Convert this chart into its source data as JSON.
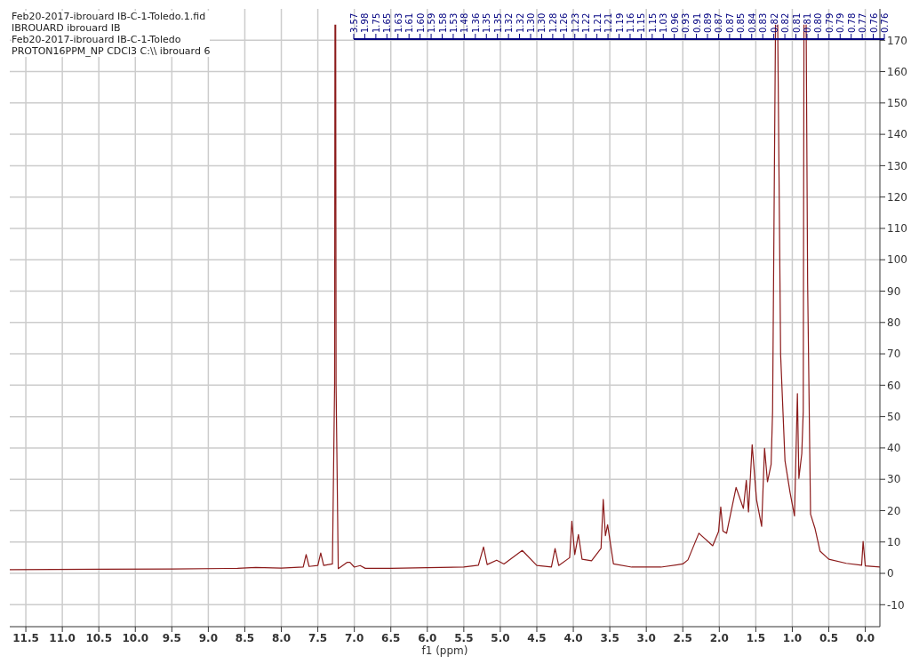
{
  "chart_data": {
    "type": "line",
    "xlabel": "f1 (ppm)",
    "annotations": [
      "Feb20-2017-ibrouard IB-C-1-Toledo.1.fid",
      "IBROUARD ibrouard IB",
      "Feb20-2017-ibrouard IB-C-1-Toledo",
      "PROTON16PPM_NP CDCl3 C:\\\\ ibrouard 6",
      "3.57",
      "1.98",
      "1.75",
      "1.65",
      "1.63",
      "1.61",
      "1.60",
      "1.59",
      "1.58",
      "1.53",
      "1.48",
      "1.36",
      "1.35",
      "1.35",
      "1.32",
      "1.32",
      "1.30",
      "1.30",
      "1.28",
      "1.26",
      "1.23",
      "1.22",
      "1.21",
      "1.21",
      "1.19",
      "1.16",
      "1.15",
      "1.15",
      "1.03",
      "0.96",
      "0.93",
      "0.91",
      "0.89",
      "0.87",
      "0.87",
      "0.85",
      "0.84",
      "0.83",
      "0.82",
      "0.82",
      "0.81",
      "0.81",
      "0.80",
      "0.79",
      "0.79",
      "0.78",
      "0.77",
      "0.76",
      "0.76"
    ],
    "xlim": [
      11.72,
      -0.2
    ],
    "xticks": [
      11.5,
      {
        "value": 11,
        "label": "11.0"
      },
      10.5,
      {
        "value": 10,
        "label": "10.0"
      },
      9.5,
      {
        "value": 9,
        "label": "9.0"
      },
      8.5,
      {
        "value": 8,
        "label": "8.0"
      },
      7.5,
      {
        "value": 7,
        "label": "7.0"
      },
      6.5,
      {
        "value": 6,
        "label": "6.0"
      },
      5.5,
      {
        "value": 5,
        "label": "5.0"
      },
      4.5,
      {
        "value": 4,
        "label": "4.0"
      },
      3.5,
      {
        "value": 3,
        "label": "3.0"
      },
      2.5,
      {
        "value": 2,
        "label": "2.0"
      },
      1.5,
      {
        "value": 1,
        "label": "1.0"
      },
      0.5,
      {
        "value": 0,
        "label": "0.0"
      }
    ],
    "ylim": [
      -17,
      180
    ],
    "yticks": [
      -10,
      0,
      10,
      20,
      30,
      40,
      50,
      60,
      70,
      80,
      90,
      100,
      110,
      120,
      130,
      140,
      150,
      160,
      170
    ],
    "grid": true,
    "marker": "none",
    "line_style": "solid",
    "series": [
      {
        "color": "#8b1a1a",
        "x": [
          11.72,
          10.5,
          9.5,
          8.6,
          8.35,
          8.0,
          7.7,
          7.66,
          7.62,
          7.5,
          7.46,
          7.42,
          7.3,
          7.27,
          7.265,
          7.26,
          7.255,
          7.25,
          7.22,
          7.1,
          7.06,
          7.0,
          6.92,
          6.85,
          6.5,
          6.0,
          5.5,
          5.3,
          5.23,
          5.18,
          5.05,
          4.95,
          4.7,
          4.5,
          4.3,
          4.25,
          4.2,
          4.05,
          4.02,
          3.98,
          3.93,
          3.88,
          3.75,
          3.62,
          3.59,
          3.56,
          3.53,
          3.45,
          3.2,
          2.8,
          2.5,
          2.43,
          2.28,
          2.09,
          2.01,
          1.98,
          1.95,
          1.9,
          1.77,
          1.67,
          1.63,
          1.6,
          1.55,
          1.49,
          1.42,
          1.38,
          1.34,
          1.29,
          1.27,
          1.23,
          1.215,
          1.2,
          1.16,
          1.1,
          1.03,
          0.97,
          0.93,
          0.91,
          0.87,
          0.85,
          0.84,
          0.825,
          0.81,
          0.79,
          0.75,
          0.69,
          0.62,
          0.5,
          0.26,
          0.05,
          0.03,
          0.0,
          -0.2
        ],
        "values": [
          1.2,
          1.3,
          1.4,
          1.6,
          1.9,
          1.7,
          2.0,
          6.0,
          2.2,
          2.5,
          6.5,
          2.5,
          3.0,
          60,
          175,
          null,
          175,
          60,
          1.5,
          3.5,
          3.5,
          2.0,
          2.5,
          1.6,
          1.6,
          1.8,
          2.0,
          2.6,
          8.4,
          2.8,
          4.2,
          3.0,
          7.3,
          2.5,
          2.0,
          7.9,
          2.5,
          5.0,
          16.6,
          6.0,
          12.4,
          4.5,
          4.0,
          8.0,
          23.6,
          12.0,
          15.5,
          3.0,
          2.0,
          2.0,
          3.0,
          4.3,
          12.8,
          8.8,
          13.3,
          21.2,
          13.5,
          12.8,
          27.4,
          20.7,
          29.7,
          19.6,
          41,
          23.5,
          15,
          39.9,
          29.2,
          34.8,
          51.7,
          175,
          null,
          175,
          69.8,
          35.9,
          25.7,
          18.3,
          57.3,
          30.3,
          38.2,
          51.7,
          175,
          null,
          175,
          92.4,
          18.9,
          14.4,
          7.1,
          4.5,
          3.2,
          2.6,
          10.2,
          2.4,
          2.0
        ]
      }
    ]
  }
}
